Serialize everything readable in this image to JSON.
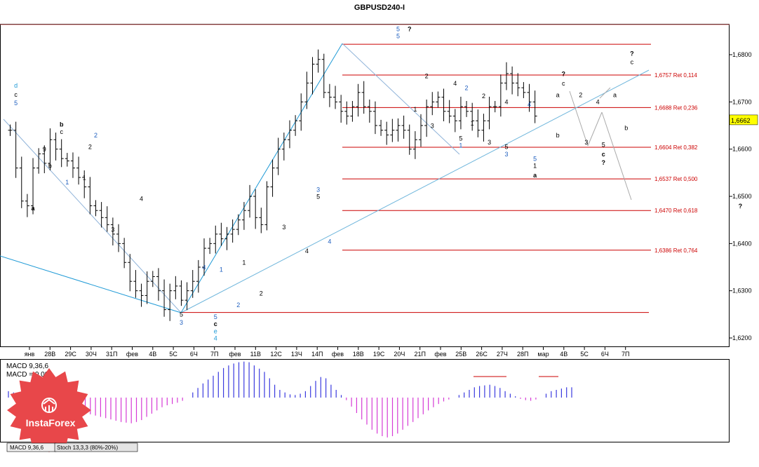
{
  "chart_data": {
    "type": "ohlc",
    "title": "GBPUSD240-I",
    "ylim": [
      1.618,
      1.6865
    ],
    "price_ticks": [
      "1,6800",
      "1,6700",
      "1,6600",
      "1,6500",
      "1,6400",
      "1,6300",
      "1,6200"
    ],
    "price_tick_values": [
      1.68,
      1.67,
      1.66,
      1.65,
      1.64,
      1.63,
      1.62
    ],
    "current_price": "1,6662",
    "current_price_value": 1.6662,
    "time_ticks": [
      "янв",
      "28В",
      "29С",
      "30Ч",
      "31П",
      "фев",
      "4В",
      "5С",
      "6Ч",
      "7П",
      "фев",
      "11В",
      "12С",
      "13Ч",
      "14П",
      "фев",
      "18В",
      "19С",
      "20Ч",
      "21П",
      "фев",
      "25В",
      "26С",
      "27Ч",
      "28П",
      "мар",
      "4В",
      "5С",
      "6Ч",
      "7П"
    ],
    "fib_levels": [
      {
        "value": 1.6822,
        "label": ""
      },
      {
        "value": 1.6757,
        "label": "1,6757 Ret 0,114"
      },
      {
        "value": 1.6688,
        "label": "1,6688 Ret 0,236"
      },
      {
        "value": 1.6604,
        "label": "1,6604 Ret 0,382"
      },
      {
        "value": 1.6537,
        "label": "1,6537 Ret 0,500"
      },
      {
        "value": 1.647,
        "label": "1,6470 Ret 0,618"
      },
      {
        "value": 1.6386,
        "label": "1,6386 Ret 0,764"
      },
      {
        "value": 1.6254,
        "label": ""
      }
    ],
    "closes": [
      1.664,
      1.656,
      1.649,
      1.648,
      1.656,
      1.659,
      1.657,
      1.662,
      1.66,
      1.658,
      1.6575,
      1.656,
      1.654,
      1.652,
      1.648,
      1.647,
      1.6455,
      1.644,
      1.642,
      1.64,
      1.636,
      1.632,
      1.63,
      1.629,
      1.632,
      1.633,
      1.63,
      1.626,
      1.63,
      1.631,
      1.628,
      1.63,
      1.632,
      1.635,
      1.639,
      1.64,
      1.642,
      1.641,
      1.642,
      1.643,
      1.645,
      1.647,
      1.65,
      1.6455,
      1.644,
      1.652,
      1.656,
      1.66,
      1.662,
      1.664,
      1.666,
      1.67,
      1.674,
      1.678,
      1.679,
      1.672,
      1.671,
      1.67,
      1.668,
      1.667,
      1.669,
      1.672,
      1.669,
      1.668,
      1.665,
      1.664,
      1.663,
      1.664,
      1.665,
      1.664,
      1.66,
      1.662,
      1.665,
      1.669,
      1.67,
      1.671,
      1.668,
      1.667,
      1.666,
      1.669,
      1.668,
      1.666,
      1.664,
      1.666,
      1.669,
      1.669,
      1.674,
      1.676,
      1.674,
      1.673,
      1.672,
      1.67,
      1.667
    ],
    "wave_labels": [
      {
        "text": "5",
        "bar": 1,
        "price": 1.6693,
        "color": "#1f5fbf"
      },
      {
        "text": "c",
        "bar": 1,
        "price": 1.6711,
        "color": "#000000"
      },
      {
        "text": "d",
        "bar": 1,
        "price": 1.673,
        "color": "#1f9ad6"
      },
      {
        "text": "a",
        "bar": 4,
        "price": 1.647,
        "color": "#000000",
        "bold": true
      },
      {
        "text": "9",
        "bar": 6,
        "price": 1.6595,
        "color": "#000000"
      },
      {
        "text": "b",
        "bar": 7,
        "price": 1.656,
        "color": "#000000"
      },
      {
        "text": "c",
        "bar": 9,
        "price": 1.6632,
        "color": "#000000"
      },
      {
        "text": "b",
        "bar": 9,
        "price": 1.6648,
        "color": "#000000",
        "bold": true
      },
      {
        "text": "1",
        "bar": 10,
        "price": 1.6525,
        "color": "#1f5fbf"
      },
      {
        "text": "1",
        "bar": 13,
        "price": 1.6535,
        "color": "#000000"
      },
      {
        "text": "2",
        "bar": 14,
        "price": 1.66,
        "color": "#000000"
      },
      {
        "text": "2",
        "bar": 15,
        "price": 1.6625,
        "color": "#1f5fbf"
      },
      {
        "text": "3",
        "bar": 18,
        "price": 1.6425,
        "color": "#000000"
      },
      {
        "text": "4",
        "bar": 23,
        "price": 1.649,
        "color": "#000000"
      },
      {
        "text": "4",
        "bar": 34,
        "price": 1.6345,
        "color": "#1f5fbf"
      },
      {
        "text": "1",
        "bar": 37,
        "price": 1.634,
        "color": "#1f5fbf"
      },
      {
        "text": "5",
        "bar": 30,
        "price": 1.6245,
        "color": "#000000"
      },
      {
        "text": "3",
        "bar": 30,
        "price": 1.6228,
        "color": "#1f5fbf"
      },
      {
        "text": "5",
        "bar": 36,
        "price": 1.624,
        "color": "#1f5fbf"
      },
      {
        "text": "c",
        "bar": 36,
        "price": 1.6225,
        "color": "#000000",
        "bold": true
      },
      {
        "text": "e",
        "bar": 36,
        "price": 1.621,
        "color": "#1f9ad6"
      },
      {
        "text": "4",
        "bar": 36,
        "price": 1.6195,
        "color": "#1f9ad6"
      },
      {
        "text": "2",
        "bar": 40,
        "price": 1.6265,
        "color": "#1f5fbf"
      },
      {
        "text": "1",
        "bar": 41,
        "price": 1.6355,
        "color": "#000000"
      },
      {
        "text": "2",
        "bar": 44,
        "price": 1.629,
        "color": "#000000"
      },
      {
        "text": "3",
        "bar": 48,
        "price": 1.643,
        "color": "#000000"
      },
      {
        "text": "4",
        "bar": 52,
        "price": 1.638,
        "color": "#000000"
      },
      {
        "text": "3",
        "bar": 54,
        "price": 1.651,
        "color": "#1f5fbf"
      },
      {
        "text": "5",
        "bar": 54,
        "price": 1.6495,
        "color": "#000000"
      },
      {
        "text": "4",
        "bar": 56,
        "price": 1.64,
        "color": "#1f5fbf"
      },
      {
        "text": "5",
        "bar": 68,
        "price": 1.685,
        "color": "#1f5fbf"
      },
      {
        "text": "5",
        "bar": 68,
        "price": 1.6835,
        "color": "#1f5fbf"
      },
      {
        "text": "?",
        "bar": 70,
        "price": 1.685,
        "color": "#000000",
        "bold": true
      },
      {
        "text": "2",
        "bar": 73,
        "price": 1.675,
        "color": "#000000"
      },
      {
        "text": "1",
        "bar": 71,
        "price": 1.668,
        "color": "#000000"
      },
      {
        "text": "3",
        "bar": 74,
        "price": 1.6645,
        "color": "#000000"
      },
      {
        "text": "4",
        "bar": 78,
        "price": 1.6735,
        "color": "#000000"
      },
      {
        "text": "2",
        "bar": 80,
        "price": 1.6725,
        "color": "#1f5fbf"
      },
      {
        "text": "5",
        "bar": 79,
        "price": 1.6618,
        "color": "#000000"
      },
      {
        "text": "1",
        "bar": 79,
        "price": 1.6603,
        "color": "#1f5fbf"
      },
      {
        "text": "1",
        "bar": 81,
        "price": 1.665,
        "color": "#000000"
      },
      {
        "text": "2",
        "bar": 83,
        "price": 1.6708,
        "color": "#000000"
      },
      {
        "text": "3",
        "bar": 84,
        "price": 1.661,
        "color": "#000000"
      },
      {
        "text": "4",
        "bar": 87,
        "price": 1.6695,
        "color": "#000000"
      },
      {
        "text": "5",
        "bar": 87,
        "price": 1.66,
        "color": "#000000"
      },
      {
        "text": "3",
        "bar": 87,
        "price": 1.6585,
        "color": "#1f5fbf"
      },
      {
        "text": "4",
        "bar": 91,
        "price": 1.669,
        "color": "#1f5fbf"
      },
      {
        "text": "5",
        "bar": 92,
        "price": 1.6575,
        "color": "#1f5fbf"
      },
      {
        "text": "1",
        "bar": 92,
        "price": 1.656,
        "color": "#000000"
      },
      {
        "text": "a",
        "bar": 92,
        "price": 1.654,
        "color": "#000000",
        "bold": true
      },
      {
        "text": "a",
        "bar": 96,
        "price": 1.671,
        "color": "#000000"
      },
      {
        "text": "b",
        "bar": 96,
        "price": 1.6625,
        "color": "#000000"
      },
      {
        "text": "c",
        "bar": 97,
        "price": 1.6735,
        "color": "#000000"
      },
      {
        "text": "?",
        "bar": 97,
        "price": 1.6755,
        "color": "#000000",
        "bold": true
      },
      {
        "text": "2",
        "bar": 100,
        "price": 1.671,
        "color": "#000000"
      },
      {
        "text": "3",
        "bar": 101,
        "price": 1.661,
        "color": "#000000"
      },
      {
        "text": "4",
        "bar": 103,
        "price": 1.6695,
        "color": "#000000"
      },
      {
        "text": "5",
        "bar": 104,
        "price": 1.6605,
        "color": "#000000"
      },
      {
        "text": "c",
        "bar": 104,
        "price": 1.6585,
        "color": "#000000",
        "bold": true
      },
      {
        "text": "?",
        "bar": 104,
        "price": 1.6567,
        "color": "#000000",
        "bold": true
      },
      {
        "text": "a",
        "bar": 106,
        "price": 1.671,
        "color": "#000000"
      },
      {
        "text": "b",
        "bar": 108,
        "price": 1.664,
        "color": "#000000"
      },
      {
        "text": "c",
        "bar": 109,
        "price": 1.678,
        "color": "#000000"
      },
      {
        "text": "?",
        "bar": 109,
        "price": 1.6798,
        "color": "#000000",
        "bold": true
      },
      {
        "text": "?",
        "bar": 128,
        "price": 1.6475,
        "color": "#000000",
        "bold": true
      }
    ],
    "macd_label": "MACD 9,36,6",
    "macd_value_label": "MACD = 0,00",
    "macd": [
      0.001,
      0.0008,
      0.0005,
      0.0002,
      -0.0002,
      -0.0005,
      -0.0008,
      -0.001,
      -0.0012,
      -0.0014,
      -0.0015,
      -0.0016,
      -0.0018,
      -0.002,
      -0.0022,
      -0.0024,
      -0.0026,
      -0.0028,
      -0.003,
      -0.0032,
      -0.0034,
      -0.0036,
      -0.0038,
      -0.0039,
      -0.004,
      -0.0038,
      -0.0035,
      -0.003,
      -0.0025,
      -0.002,
      -0.0015,
      -0.0012,
      -0.001,
      -0.0008,
      -0.0005,
      0.0,
      0.0008,
      0.0015,
      0.0022,
      0.0028,
      0.0034,
      0.004,
      0.0046,
      0.005,
      0.0053,
      0.0055,
      0.0056,
      0.0055,
      0.005,
      0.0045,
      0.004,
      0.003,
      0.002,
      0.0012,
      0.0008,
      0.0005,
      0.0004,
      0.0006,
      0.001,
      0.0018,
      0.0026,
      0.0032,
      0.003,
      0.002,
      0.0012,
      0.0004,
      -0.0004,
      -0.0014,
      -0.0024,
      -0.0034,
      -0.0042,
      -0.005,
      -0.0056,
      -0.006,
      -0.0062,
      -0.006,
      -0.0056,
      -0.005,
      -0.0044,
      -0.0038,
      -0.0032,
      -0.0026,
      -0.002,
      -0.0015,
      -0.001,
      -0.0006,
      -0.0003,
      0.0,
      0.0004,
      0.0008,
      0.0012,
      0.0016,
      0.0018,
      0.0019,
      0.002,
      0.0018,
      0.0015,
      0.001,
      0.0006,
      0.0002,
      -0.0002,
      -0.0004,
      -0.0005,
      -0.0003,
      0.0,
      0.0006,
      0.001,
      0.0012,
      0.0014,
      0.0016,
      0.0016,
      0.0013,
      0.0009,
      0.0004
    ],
    "stoch_label": "Stoch 13,3,3 (80%-20%)",
    "logo_text": "InstaForex"
  }
}
